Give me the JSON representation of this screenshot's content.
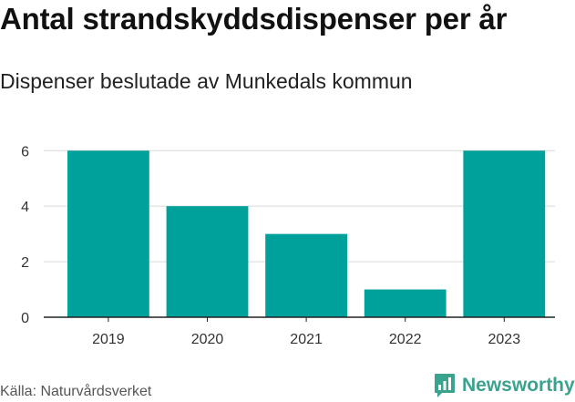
{
  "title": "Antal strandskyddsdispenser per år",
  "subtitle": "Dispenser beslutade av Munkedals kommun",
  "source": "Källa: Naturvårdsverket",
  "brand": {
    "name": "Newsworthy",
    "icon": "newsworthy-chart-icon",
    "color": "#3aa38e"
  },
  "colors": {
    "bar": "#00a19a",
    "grid": "#d9d9d9",
    "axis": "#222222"
  },
  "chart_data": {
    "type": "bar",
    "categories": [
      "2019",
      "2020",
      "2021",
      "2022",
      "2023"
    ],
    "values": [
      6,
      4,
      3,
      1,
      6
    ],
    "yticks": [
      0,
      2,
      4,
      6
    ],
    "ylim": [
      0,
      6.6
    ],
    "grid": true,
    "title": "Antal strandskyddsdispenser per år",
    "subtitle": "Dispenser beslutade av Munkedals kommun"
  }
}
